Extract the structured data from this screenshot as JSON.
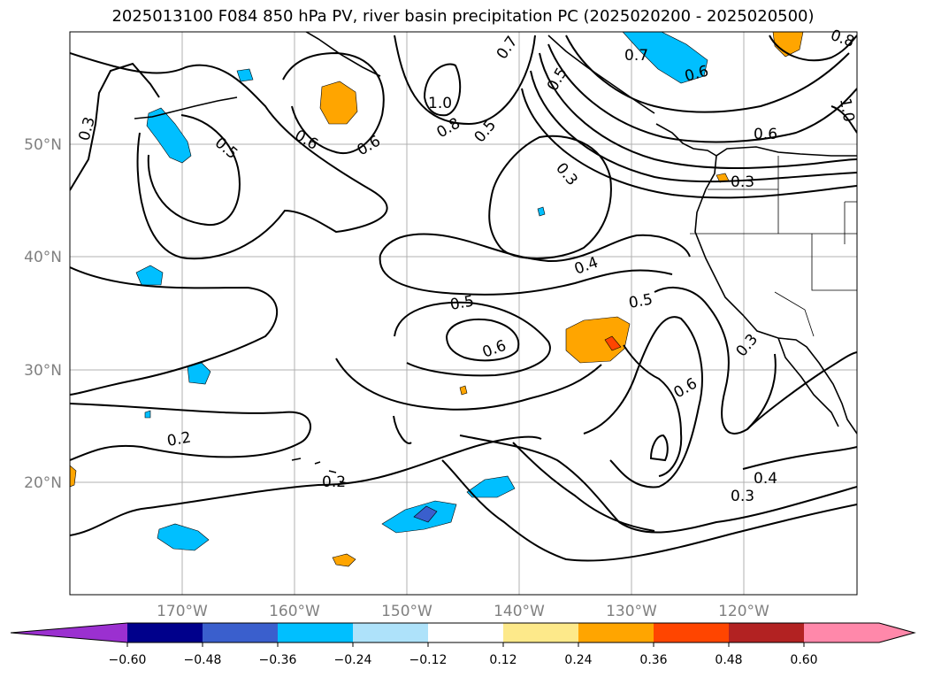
{
  "title": "2025013100 F084 850 hPa PV, river basin precipitation PC (2025020200 - 2025020500)",
  "axes": {
    "lon_labels": [
      "170°W",
      "160°W",
      "150°W",
      "140°W",
      "130°W",
      "120°W"
    ],
    "lat_labels": [
      "50°N",
      "40°N",
      "30°N",
      "20°N"
    ]
  },
  "contour_labels": [
    "0.3",
    "0.5",
    "0.6",
    "0.6",
    "1.0",
    "0.8",
    "0.5",
    "0.7",
    "0.5",
    "0.7",
    "0.6",
    "0.8",
    "1.0",
    "0.6",
    "0.3",
    "0.3",
    "0.4",
    "0.5",
    "0.6",
    "0.5",
    "0.3",
    "0.6",
    "0.2",
    "0.2",
    "0.4",
    "0.3"
  ],
  "colorbar": {
    "ticks": [
      "−0.60",
      "−0.48",
      "−0.36",
      "−0.24",
      "−0.12",
      "0.12",
      "0.24",
      "0.36",
      "0.48",
      "0.60"
    ],
    "colors": [
      "#9b30d0",
      "#00008b",
      "#3a5fcd",
      "#00bfff",
      "#aee2fa",
      "#ffffff",
      "#fde98a",
      "#ffa500",
      "#ff4500",
      "#b22222",
      "#ff88aa",
      "#ff88aa"
    ]
  }
}
